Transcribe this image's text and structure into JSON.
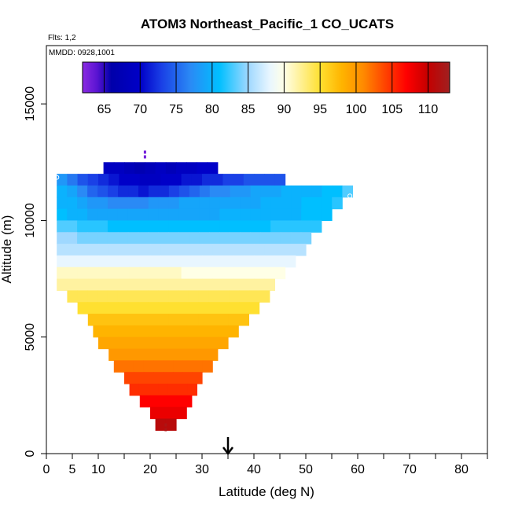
{
  "chart_data": {
    "type": "heatmap",
    "title": "ATOM3 Northeast_Pacific_1 CO_UCATS",
    "flights_note": "Flts: 1,2",
    "dates_note": "MMDD: 0928,1001",
    "xlabel": "Latitude (deg N)",
    "ylabel": "Altitude (m)",
    "xlim": [
      0,
      85
    ],
    "ylim": [
      0,
      17500
    ],
    "x_ticks": [
      0,
      5,
      10,
      15,
      20,
      25,
      30,
      35,
      40,
      45,
      50,
      55,
      60,
      65,
      70,
      75,
      80,
      85
    ],
    "x_tick_labels": [
      "0",
      "5",
      "10",
      "",
      "20",
      "",
      "30",
      "",
      "40",
      "",
      "50",
      "",
      "60",
      "",
      "70",
      "",
      "80",
      ""
    ],
    "y_ticks": [
      0,
      5000,
      10000,
      15000
    ],
    "y_tick_labels": [
      "0",
      "5000",
      "10000",
      "15000"
    ],
    "colorbar": {
      "min": 62,
      "max": 113,
      "ticks": [
        65,
        70,
        75,
        80,
        85,
        90,
        95,
        100,
        105,
        110
      ],
      "tick_labels": [
        "65",
        "70",
        "75",
        "80",
        "85",
        "90",
        "95",
        "100",
        "105",
        "110"
      ],
      "stops": [
        {
          "v": 62,
          "c": "#8b2be2"
        },
        {
          "v": 64,
          "c": "#5a14d2"
        },
        {
          "v": 66,
          "c": "#0000aa"
        },
        {
          "v": 70,
          "c": "#0000c8"
        },
        {
          "v": 73,
          "c": "#1a40e6"
        },
        {
          "v": 77,
          "c": "#2a8af5"
        },
        {
          "v": 81,
          "c": "#00bfff"
        },
        {
          "v": 85,
          "c": "#9fd8ff"
        },
        {
          "v": 88,
          "c": "#e8f6ff"
        },
        {
          "v": 90,
          "c": "#ffffe6"
        },
        {
          "v": 92,
          "c": "#fff2a0"
        },
        {
          "v": 95,
          "c": "#ffe030"
        },
        {
          "v": 98,
          "c": "#ffb400"
        },
        {
          "v": 101,
          "c": "#ff8a00"
        },
        {
          "v": 104,
          "c": "#ff4400"
        },
        {
          "v": 107,
          "c": "#ff0000"
        },
        {
          "v": 110,
          "c": "#c40000"
        },
        {
          "v": 113,
          "c": "#a02020"
        }
      ]
    },
    "rows": [
      {
        "alt": 12250,
        "lat_min": 11,
        "lat_max": 33,
        "values": [
          69,
          69,
          68,
          67,
          68,
          69,
          68,
          69,
          69,
          70,
          70
        ]
      },
      {
        "alt": 11750,
        "lat_min": 2,
        "lat_max": 46,
        "values": [
          78,
          76,
          74,
          73,
          72,
          71,
          70,
          70,
          69,
          69,
          70,
          70,
          71,
          71,
          72,
          72,
          73,
          73,
          74,
          74,
          74,
          74
        ]
      },
      {
        "alt": 11250,
        "lat_min": 2,
        "lat_max": 59,
        "values": [
          80,
          79,
          77,
          75,
          74,
          73,
          72,
          72,
          71,
          72,
          72,
          73,
          74,
          75,
          76,
          77,
          77,
          78,
          78,
          79,
          79,
          79,
          80,
          80,
          80,
          80,
          81,
          81,
          83
        ]
      },
      {
        "alt": 10750,
        "lat_min": 2,
        "lat_max": 57,
        "values": [
          80,
          80,
          79,
          78,
          78,
          77,
          77,
          77,
          77,
          78,
          78,
          78,
          79,
          79,
          79,
          79,
          79,
          79,
          79,
          79,
          80,
          80,
          80,
          80,
          81,
          81,
          81,
          82
        ]
      },
      {
        "alt": 10250,
        "lat_min": 2,
        "lat_max": 55,
        "values": [
          81,
          80,
          80,
          79,
          79,
          79,
          79,
          79,
          79,
          79,
          79,
          79,
          79,
          79,
          79,
          79,
          80,
          80,
          80,
          80,
          80,
          80,
          80,
          80,
          81,
          81,
          81
        ]
      },
      {
        "alt": 9750,
        "lat_min": 2,
        "lat_max": 53,
        "values": [
          83,
          83,
          82,
          82,
          82,
          81,
          81,
          81,
          81,
          81,
          81,
          81,
          81,
          81,
          81,
          81,
          81,
          81,
          81,
          81,
          81,
          82,
          82,
          82,
          82,
          82
        ]
      },
      {
        "alt": 9250,
        "lat_min": 2,
        "lat_max": 51,
        "values": [
          85,
          85,
          84,
          84,
          84,
          84,
          84,
          84,
          84,
          84,
          84,
          84,
          84,
          84,
          84,
          84,
          84,
          84,
          84,
          84,
          84,
          84,
          84,
          84,
          84
        ]
      },
      {
        "alt": 8750,
        "lat_min": 2,
        "lat_max": 50,
        "values": [
          86,
          86,
          86,
          86,
          86,
          86,
          86,
          86,
          86,
          86,
          86,
          86,
          86,
          86,
          86,
          86,
          86,
          86,
          86,
          86,
          86,
          86,
          86,
          86
        ]
      },
      {
        "alt": 8250,
        "lat_min": 2,
        "lat_max": 48,
        "values": [
          88,
          88,
          88,
          88,
          88,
          88,
          88,
          88,
          88,
          88,
          88,
          88,
          88,
          88,
          88,
          88,
          88,
          88,
          88,
          88,
          88,
          88,
          88
        ]
      },
      {
        "alt": 7750,
        "lat_min": 2,
        "lat_max": 46,
        "values": [
          91,
          91,
          91,
          91,
          91,
          91,
          91,
          91,
          91,
          91,
          91,
          91,
          90,
          90,
          90,
          90,
          90,
          90,
          90,
          90,
          90,
          90
        ]
      },
      {
        "alt": 7250,
        "lat_min": 2,
        "lat_max": 44,
        "values": [
          92,
          92,
          92,
          92,
          92,
          92,
          92,
          92,
          92,
          92,
          92,
          92,
          92,
          92,
          92,
          92,
          92,
          92,
          92,
          92,
          92
        ]
      },
      {
        "alt": 6750,
        "lat_min": 4,
        "lat_max": 43,
        "values": [
          94,
          94,
          94,
          94,
          94,
          94,
          94,
          94,
          94,
          94,
          94,
          94,
          94,
          94,
          94,
          94,
          94,
          94,
          94,
          94
        ]
      },
      {
        "alt": 6250,
        "lat_min": 6,
        "lat_max": 41,
        "values": [
          95,
          95,
          95,
          95,
          95,
          95,
          95,
          95,
          95,
          95,
          95,
          95,
          95,
          95,
          95,
          95,
          95,
          95
        ]
      },
      {
        "alt": 5750,
        "lat_min": 8,
        "lat_max": 39,
        "values": [
          97,
          97,
          97,
          97,
          97,
          97,
          97,
          97,
          97,
          97,
          97,
          97,
          97,
          97,
          97,
          97
        ]
      },
      {
        "alt": 5250,
        "lat_min": 9,
        "lat_max": 37,
        "values": [
          98,
          98,
          98,
          98,
          98,
          98,
          98,
          98,
          98,
          98,
          98,
          98,
          98,
          98
        ]
      },
      {
        "alt": 4750,
        "lat_min": 10,
        "lat_max": 35,
        "values": [
          99,
          99,
          99,
          99,
          99,
          99,
          99,
          99,
          99,
          99,
          99,
          99,
          99
        ]
      },
      {
        "alt": 4250,
        "lat_min": 12,
        "lat_max": 33,
        "values": [
          100,
          100,
          100,
          100,
          100,
          100,
          100,
          100,
          100,
          100,
          100
        ]
      },
      {
        "alt": 3750,
        "lat_min": 13,
        "lat_max": 32,
        "values": [
          102,
          102,
          102,
          102,
          102,
          102,
          102,
          102,
          102,
          102
        ]
      },
      {
        "alt": 3250,
        "lat_min": 15,
        "lat_max": 30,
        "values": [
          104,
          104,
          104,
          104,
          104,
          104,
          104,
          104
        ]
      },
      {
        "alt": 2750,
        "lat_min": 16,
        "lat_max": 29,
        "values": [
          105,
          105,
          105,
          105,
          105,
          105,
          105
        ]
      },
      {
        "alt": 2250,
        "lat_min": 18,
        "lat_max": 28,
        "values": [
          107,
          107,
          107,
          107,
          107
        ]
      },
      {
        "alt": 1750,
        "lat_min": 20,
        "lat_max": 27,
        "values": [
          108,
          108,
          108,
          108
        ]
      },
      {
        "alt": 1250,
        "lat_min": 21,
        "lat_max": 25,
        "values": [
          111,
          111
        ]
      }
    ],
    "markers": [
      {
        "lat": 19,
        "alt_min": 12600,
        "alt_max": 13000,
        "value": 63
      },
      {
        "lat": 23,
        "alt_min": 900,
        "alt_max": 1300,
        "value": 112
      }
    ],
    "endpoint_circles": [
      {
        "lat": 2,
        "alt": 11850
      },
      {
        "lat": 58.5,
        "alt": 11050
      }
    ],
    "arrow_lat": 35
  }
}
